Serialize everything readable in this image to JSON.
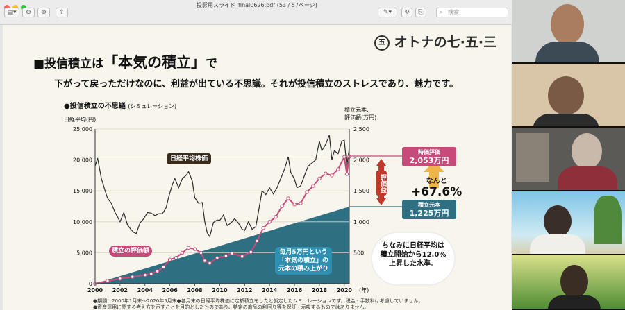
{
  "window": {
    "title": "投影用スライド_final0626.pdf",
    "page_info": "(53 / 57ページ)",
    "search_placeholder": "検索"
  },
  "slide": {
    "logo_text": "オトナの七·五·三",
    "heading_prefix": "■投信積立は",
    "heading_emph": "「本気の積立」",
    "heading_suffix": "で",
    "subheading": "下がって戻っただけなのに、利益が出ている不思議。それが投信積立のストレスであり、魅力です。",
    "chart_title": "●投信積立の不思議",
    "chart_title_note": "(シミュレーション)",
    "left_axis_label": "日経平均(円)",
    "right_axis_label_1": "積立元本、",
    "right_axis_label_2": "評価額(万円)",
    "x_unit": "(年)",
    "nikkei_label": "日経平均株価",
    "valuation_label": "積立の評価額",
    "principal_label_1": "毎月5万円という",
    "principal_label_2": "「本気の積立」の",
    "principal_label_3": "元本の積み上がり",
    "profit_label": "評価益",
    "market_value_title": "時価評価",
    "market_value": "2,053万円",
    "principal_title": "積立元本",
    "principal_value": "1,225万円",
    "gain_prefix": "なんと",
    "gain_value": "+67.6%",
    "note_1": "ちなみに日経平均は",
    "note_2": "積立開始から12.0%",
    "note_3": "上昇した水準。",
    "footnote_1": "●期間：2000年1月末～2020年5月末●各月末の日経平均株価に定額積立をしたと仮定したシミュレーションです。税金・手数料は考慮していません。",
    "footnote_2": "●資産運用に関する考え方を示すことを目的としたものであり、特定の商品の利回り等を保証・示唆するものではありません。"
  },
  "chart_data": {
    "type": "line",
    "x_ticks": [
      "2000",
      "2002",
      "2004",
      "2006",
      "2008",
      "2010",
      "2012",
      "2014",
      "2016",
      "2018",
      "2020"
    ],
    "left_ticks": [
      "25,000",
      "20,000",
      "15,000",
      "10,000",
      "5,000",
      "0"
    ],
    "right_ticks": [
      "2,500",
      "2,000",
      "1,500",
      "1,000",
      "500"
    ],
    "ylim_left": [
      0,
      25000
    ],
    "ylim_right": [
      0,
      2500
    ],
    "xlim": [
      2000,
      2020.4
    ],
    "series": [
      {
        "name": "日経平均株価",
        "axis": "left",
        "x": [
          2000.0,
          2000.2,
          2000.5,
          2000.8,
          2001.0,
          2001.3,
          2001.6,
          2001.8,
          2002.0,
          2002.3,
          2002.6,
          2002.9,
          2003.1,
          2003.3,
          2003.6,
          2003.9,
          2004.2,
          2004.5,
          2004.8,
          2005.1,
          2005.4,
          2005.7,
          2005.9,
          2006.2,
          2006.4,
          2006.7,
          2007.0,
          2007.3,
          2007.5,
          2007.8,
          2008.0,
          2008.3,
          2008.6,
          2008.8,
          2009.0,
          2009.2,
          2009.5,
          2009.8,
          2010.0,
          2010.3,
          2010.6,
          2010.9,
          2011.2,
          2011.5,
          2011.8,
          2012.0,
          2012.3,
          2012.6,
          2012.9,
          2013.1,
          2013.4,
          2013.7,
          2014.0,
          2014.3,
          2014.6,
          2014.9,
          2015.2,
          2015.5,
          2015.7,
          2016.0,
          2016.2,
          2016.5,
          2016.9,
          2017.1,
          2017.4,
          2017.7,
          2018.0,
          2018.2,
          2018.5,
          2018.8,
          2019.0,
          2019.2,
          2019.5,
          2019.8,
          2020.0,
          2020.2,
          2020.4
        ],
        "y": [
          19000,
          20300,
          17000,
          15000,
          13800,
          13000,
          11500,
          10800,
          10000,
          11500,
          9500,
          8700,
          8300,
          8100,
          9800,
          10500,
          11500,
          11400,
          11000,
          11300,
          11300,
          12300,
          14000,
          16000,
          17000,
          15500,
          17000,
          17500,
          18100,
          16600,
          13900,
          13000,
          13100,
          10000,
          8200,
          7600,
          9900,
          10300,
          10200,
          11100,
          9400,
          9800,
          10500,
          9800,
          8800,
          8600,
          10000,
          8800,
          9200,
          11500,
          15000,
          14400,
          15500,
          14500,
          15500,
          17000,
          18500,
          20500,
          18000,
          16900,
          15500,
          15800,
          18000,
          19000,
          19500,
          20000,
          23000,
          21500,
          22500,
          24000,
          20000,
          21500,
          21000,
          23000,
          23200,
          19000,
          21900
        ]
      },
      {
        "name": "積立の評価額",
        "axis": "right",
        "x": [
          2000.0,
          2001.0,
          2002.0,
          2003.0,
          2004.0,
          2004.5,
          2005.0,
          2005.5,
          2006.0,
          2006.5,
          2007.0,
          2007.5,
          2008.0,
          2008.5,
          2008.8,
          2009.2,
          2009.8,
          2010.5,
          2011.0,
          2011.8,
          2012.5,
          2013.0,
          2013.5,
          2014.0,
          2014.5,
          2015.0,
          2015.5,
          2016.0,
          2016.5,
          2017.0,
          2017.5,
          2018.0,
          2018.5,
          2019.0,
          2019.5,
          2020.0,
          2020.2,
          2020.4
        ],
        "y": [
          0,
          45,
          80,
          110,
          140,
          160,
          200,
          270,
          390,
          420,
          500,
          580,
          560,
          500,
          370,
          330,
          420,
          450,
          490,
          440,
          510,
          690,
          900,
          1000,
          1080,
          1250,
          1380,
          1280,
          1300,
          1480,
          1580,
          1700,
          1780,
          1750,
          1850,
          2050,
          1770,
          2053
        ]
      },
      {
        "name": "積立元本",
        "axis": "right",
        "x": [
          2000.0,
          2020.4
        ],
        "y": [
          0,
          1225
        ]
      }
    ]
  },
  "participants": [
    {
      "name": "participant-1"
    },
    {
      "name": "participant-2"
    },
    {
      "name": "participant-3"
    },
    {
      "name": "participant-4"
    },
    {
      "name": "participant-5"
    }
  ]
}
